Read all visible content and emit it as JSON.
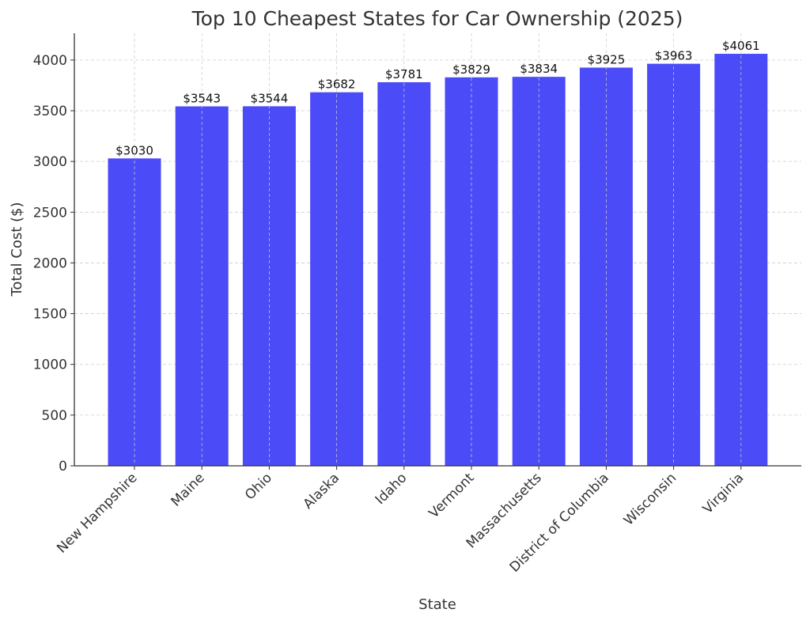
{
  "chart_data": {
    "type": "bar",
    "title": "Top 10 Cheapest States for Car Ownership (2025)",
    "xlabel": "State",
    "ylabel": "Total Cost ($)",
    "categories": [
      "New Hampshire",
      "Maine",
      "Ohio",
      "Alaska",
      "Idaho",
      "Vermont",
      "Massachusetts",
      "District of Columbia",
      "Wisconsin",
      "Virginia"
    ],
    "values": [
      3030,
      3543,
      3544,
      3682,
      3781,
      3829,
      3834,
      3925,
      3963,
      4061
    ],
    "value_labels": [
      "$3030",
      "$3543",
      "$3544",
      "$3682",
      "$3781",
      "$3829",
      "$3834",
      "$3925",
      "$3963",
      "$4061"
    ],
    "yticks": [
      0,
      500,
      1000,
      1500,
      2000,
      2500,
      3000,
      3500,
      4000
    ],
    "ylim": [
      0,
      4264
    ],
    "grid": true,
    "bar_color": "#4B4BF7",
    "text_color": "#333333"
  }
}
